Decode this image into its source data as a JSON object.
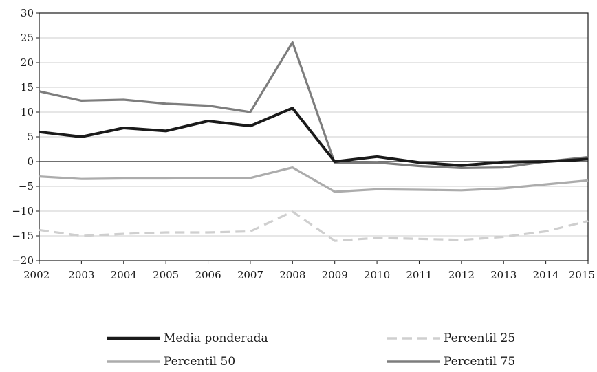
{
  "chart_data": {
    "type": "line",
    "title": "",
    "xlabel": "",
    "ylabel": "",
    "x": [
      "2002",
      "2003",
      "2004",
      "2005",
      "2006",
      "2007",
      "2008",
      "2009",
      "2010",
      "2011",
      "2012",
      "2013",
      "2014",
      "2015"
    ],
    "ylim": [
      -20,
      30
    ],
    "yticks": [
      30,
      25,
      20,
      15,
      10,
      5,
      0,
      -5,
      -10,
      -15,
      -20
    ],
    "ytick_labels": [
      "30",
      "25",
      "20",
      "15",
      "10",
      "5",
      "0",
      "−5",
      "−10",
      "−15",
      "−20"
    ],
    "grid": true,
    "legend_position": "bottom",
    "series": [
      {
        "name": "Media ponderada",
        "color": "#1a1a1a",
        "style": "solid",
        "values": [
          6.0,
          5.0,
          6.8,
          6.2,
          8.2,
          7.2,
          10.8,
          0.0,
          1.0,
          -0.2,
          -0.8,
          -0.1,
          0.0,
          0.5
        ]
      },
      {
        "name": "Percentil 25",
        "color": "#cfcfcf",
        "style": "dashed",
        "values": [
          -13.8,
          -15.0,
          -14.6,
          -14.3,
          -14.3,
          -14.1,
          -10.1,
          -16.0,
          -15.4,
          -15.6,
          -15.8,
          -15.2,
          -14.1,
          -12.0
        ]
      },
      {
        "name": "Percentil 50",
        "color": "#acacac",
        "style": "solid",
        "values": [
          -3.0,
          -3.5,
          -3.4,
          -3.4,
          -3.3,
          -3.3,
          -1.2,
          -6.1,
          -5.6,
          -5.7,
          -5.8,
          -5.4,
          -4.6,
          -3.8
        ]
      },
      {
        "name": "Percentil 75",
        "color": "#7d7d7d",
        "style": "solid",
        "values": [
          14.2,
          12.3,
          12.5,
          11.7,
          11.3,
          10.0,
          24.1,
          -0.3,
          -0.2,
          -0.9,
          -1.3,
          -1.2,
          0.0,
          0.9
        ]
      }
    ]
  }
}
